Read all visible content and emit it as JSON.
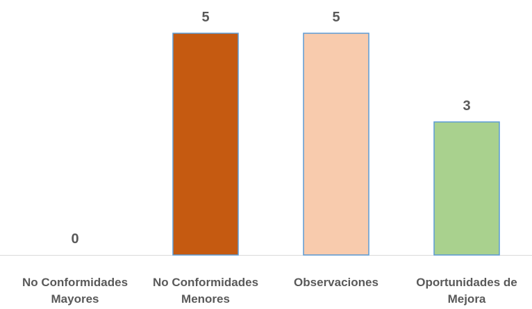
{
  "chart_data": {
    "type": "bar",
    "categories": [
      [
        "No Conformidades",
        "Mayores"
      ],
      [
        "No Conformidades",
        "Menores"
      ],
      [
        "Observaciones"
      ],
      [
        "Oportunidades de",
        "Mejora"
      ]
    ],
    "values": [
      0,
      5,
      5,
      3
    ],
    "data_labels": [
      "0",
      "5",
      "5",
      "3"
    ],
    "bar_colors": [
      "#c55a11",
      "#c55a11",
      "#f8cbad",
      "#a9d18e"
    ],
    "bar_edge_color": "#5b9bd5",
    "baseline_color": "#d9d9d9",
    "ylim": [
      0,
      5
    ],
    "grid": false,
    "legend": "none"
  }
}
